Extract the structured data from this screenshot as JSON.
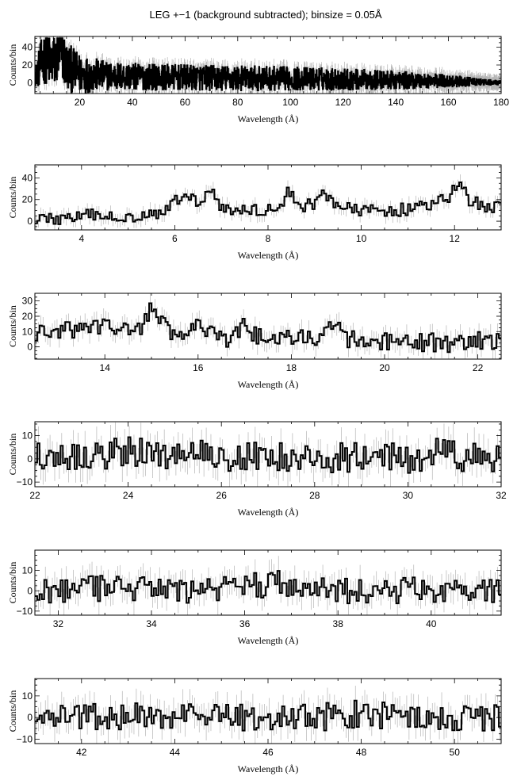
{
  "title": "LEG +−1 (background subtracted); binsize = 0.05Å",
  "chart_data": [
    {
      "type": "line",
      "style": "step-histogram-with-error-bars",
      "xlabel": "Wavelength (Å)",
      "ylabel": "Counts/bin",
      "xlim": [
        3,
        180
      ],
      "ylim": [
        -12,
        52
      ],
      "xticks": [
        20,
        40,
        60,
        80,
        100,
        120,
        140,
        160,
        180
      ],
      "yticks": [
        0,
        20,
        40
      ],
      "x": [
        3,
        5,
        7,
        9,
        11,
        13,
        15,
        20,
        30,
        40,
        60,
        80,
        100,
        120,
        140,
        160,
        170,
        180
      ],
      "y": [
        5,
        20,
        30,
        22,
        25,
        35,
        18,
        10,
        8,
        7,
        6,
        5,
        5,
        4,
        3,
        2,
        1,
        0
      ],
      "envelope": [
        8,
        25,
        30,
        30,
        30,
        30,
        28,
        22,
        16,
        15,
        14,
        14,
        13,
        12,
        10,
        7,
        4,
        2
      ]
    },
    {
      "type": "line",
      "style": "step-histogram-with-error-bars",
      "xlabel": "Wavelength (Å)",
      "ylabel": "Counts/bin",
      "xlim": [
        3,
        13
      ],
      "ylim": [
        -8,
        52
      ],
      "xticks": [
        4,
        6,
        8,
        10,
        12
      ],
      "yticks": [
        0,
        20,
        40
      ],
      "x": [
        3.0,
        3.5,
        4.0,
        4.3,
        4.6,
        5.0,
        5.3,
        5.6,
        5.9,
        6.1,
        6.25,
        6.45,
        6.6,
        6.75,
        7.0,
        7.3,
        7.6,
        8.0,
        8.3,
        8.45,
        8.7,
        9.0,
        9.2,
        9.5,
        9.8,
        10.2,
        10.6,
        11.0,
        11.4,
        11.7,
        11.9,
        12.1,
        12.3,
        12.6,
        13.0
      ],
      "y": [
        3,
        2,
        4,
        6,
        3,
        5,
        6,
        8,
        14,
        20,
        30,
        16,
        22,
        34,
        12,
        10,
        10,
        11,
        12,
        29,
        14,
        16,
        28,
        14,
        10,
        10,
        10,
        11,
        14,
        18,
        22,
        38,
        20,
        14,
        12
      ]
    },
    {
      "type": "line",
      "style": "step-histogram-with-error-bars",
      "xlabel": "Wavelength (Å)",
      "ylabel": "Counts/bin",
      "xlim": [
        12.5,
        22.5
      ],
      "ylim": [
        -8,
        35
      ],
      "xticks": [
        14,
        16,
        18,
        20,
        22
      ],
      "yticks": [
        0,
        10,
        20,
        30
      ],
      "x": [
        12.5,
        13.0,
        13.5,
        14.0,
        14.5,
        14.8,
        15.0,
        15.2,
        15.5,
        15.8,
        16.0,
        16.2,
        16.5,
        16.8,
        17.0,
        17.2,
        17.5,
        18.0,
        18.5,
        18.8,
        19.0,
        19.2,
        19.5,
        20.0,
        20.5,
        21.0,
        21.5,
        22.0,
        22.5
      ],
      "y": [
        8,
        10,
        12,
        14,
        10,
        14,
        27,
        16,
        7,
        5,
        22,
        10,
        4,
        6,
        18,
        8,
        4,
        5,
        6,
        10,
        20,
        6,
        2,
        3,
        2,
        3,
        2,
        4,
        3
      ]
    },
    {
      "type": "line",
      "style": "step-histogram-with-error-bars",
      "xlabel": "Wavelength (Å)",
      "ylabel": "Counts/bin",
      "xlim": [
        22,
        32
      ],
      "ylim": [
        -12,
        16
      ],
      "xticks": [
        22,
        24,
        26,
        28,
        30,
        32
      ],
      "yticks": [
        -10,
        0,
        10
      ],
      "x": [
        22.0,
        23.0,
        24.0,
        24.5,
        25.0,
        25.5,
        26.0,
        27.0,
        28.0,
        29.0,
        30.0,
        30.5,
        30.8,
        31.0,
        31.5,
        32.0
      ],
      "y": [
        2,
        1,
        3,
        2,
        2,
        3,
        1,
        1,
        0,
        1,
        0,
        1,
        4,
        1,
        0,
        0
      ]
    },
    {
      "type": "line",
      "style": "step-histogram-with-error-bars",
      "xlabel": "Wavelength (Å)",
      "ylabel": "Counts/bin",
      "xlim": [
        31.5,
        41.5
      ],
      "ylim": [
        -12,
        20
      ],
      "xticks": [
        32,
        34,
        36,
        38,
        40
      ],
      "yticks": [
        -10,
        0,
        10
      ],
      "x": [
        31.5,
        32.5,
        33.5,
        34.5,
        35.5,
        36.0,
        36.5,
        36.7,
        37.0,
        38.0,
        39.0,
        40.0,
        41.0,
        41.5
      ],
      "y": [
        0,
        1,
        1,
        0,
        1,
        2,
        3,
        6,
        1,
        0,
        0,
        1,
        0,
        0
      ]
    },
    {
      "type": "line",
      "style": "step-histogram-with-error-bars",
      "xlabel": "Wavelength (Å)",
      "ylabel": "Counts/bin",
      "xlim": [
        41,
        51
      ],
      "ylim": [
        -12,
        18
      ],
      "xticks": [
        42,
        44,
        46,
        48,
        50
      ],
      "yticks": [
        -10,
        0,
        10
      ],
      "x": [
        41.0,
        42.0,
        43.0,
        44.0,
        45.0,
        46.0,
        47.0,
        48.0,
        49.0,
        50.0,
        51.0
      ],
      "y": [
        0,
        1,
        0,
        1,
        0,
        1,
        0,
        2,
        0,
        0,
        0
      ]
    }
  ]
}
